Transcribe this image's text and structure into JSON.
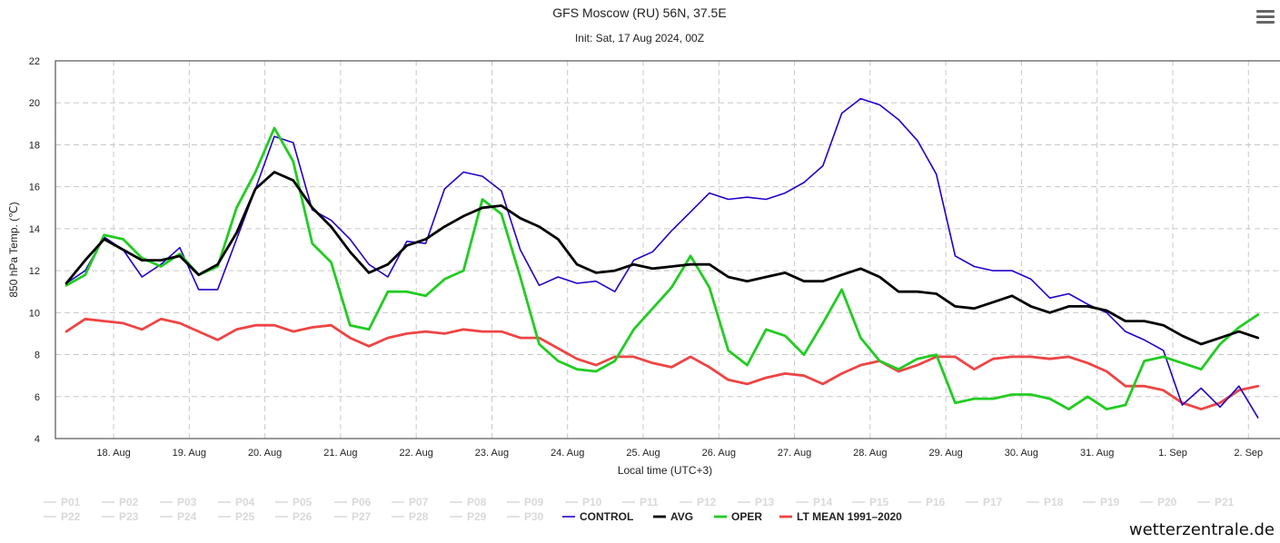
{
  "title": "GFS Moscow (RU) 56N, 37.5E",
  "subtitle": "Init: Sat, 17 Aug 2024, 00Z",
  "credit": "wetterzentrale.de",
  "chart_data": {
    "type": "line",
    "ylabel": "850 hPa Temp. (℃)",
    "xlabel": "Local time (UTC+3)",
    "ylim": [
      4,
      22
    ],
    "yticks": [
      4,
      6,
      8,
      10,
      12,
      14,
      16,
      18,
      20,
      22
    ],
    "x_start": "2024-08-17 09:00",
    "x_step_hours": 6,
    "xtick_labels": [
      "18. Aug",
      "19. Aug",
      "20. Aug",
      "21. Aug",
      "22. Aug",
      "23. Aug",
      "24. Aug",
      "25. Aug",
      "26. Aug",
      "27. Aug",
      "28. Aug",
      "29. Aug",
      "30. Aug",
      "31. Aug",
      "1. Sep",
      "2. Sep"
    ],
    "grid": true,
    "series": [
      {
        "name": "CONTROL",
        "color": "#2200cc",
        "values": [
          11.4,
          12.0,
          13.6,
          13.0,
          11.7,
          12.3,
          13.1,
          11.1,
          11.1,
          13.5,
          15.9,
          18.4,
          18.1,
          14.9,
          14.4,
          13.5,
          12.3,
          11.7,
          13.4,
          13.3,
          15.9,
          16.7,
          16.5,
          15.8,
          13.0,
          11.3,
          11.7,
          11.4,
          11.5,
          11.0,
          12.5,
          12.9,
          13.9,
          14.8,
          15.7,
          15.4,
          15.5,
          15.4,
          15.7,
          16.2,
          17.0,
          19.5,
          20.2,
          19.9,
          19.2,
          18.2,
          16.6,
          12.7,
          12.2,
          12.0,
          12.0,
          11.6,
          10.7,
          10.9,
          10.4,
          10.0,
          9.1,
          8.7,
          8.2,
          5.6,
          6.4,
          5.5,
          6.5,
          5.0
        ]
      },
      {
        "name": "AVG",
        "color": "#000000",
        "values": [
          11.4,
          12.5,
          13.5,
          13.0,
          12.5,
          12.5,
          12.7,
          11.8,
          12.3,
          13.8,
          15.9,
          16.7,
          16.3,
          15.0,
          14.1,
          12.9,
          11.9,
          12.3,
          13.2,
          13.5,
          14.1,
          14.6,
          15.0,
          15.1,
          14.5,
          14.1,
          13.5,
          12.3,
          11.9,
          12.0,
          12.3,
          12.1,
          12.2,
          12.3,
          12.3,
          11.7,
          11.5,
          11.7,
          11.9,
          11.5,
          11.5,
          11.8,
          12.1,
          11.7,
          11.0,
          11.0,
          10.9,
          10.3,
          10.2,
          10.5,
          10.8,
          10.3,
          10.0,
          10.3,
          10.3,
          10.1,
          9.6,
          9.6,
          9.4,
          8.9,
          8.5,
          8.8,
          9.1,
          8.8
        ]
      },
      {
        "name": "OPER",
        "color": "#22cc22",
        "values": [
          11.3,
          11.8,
          13.7,
          13.5,
          12.6,
          12.2,
          12.8,
          11.8,
          12.2,
          15.0,
          16.7,
          18.8,
          17.2,
          13.3,
          12.4,
          9.4,
          9.2,
          11.0,
          11.0,
          10.8,
          11.6,
          12.0,
          15.4,
          14.7,
          11.7,
          8.5,
          7.7,
          7.3,
          7.2,
          7.7,
          9.2,
          10.2,
          11.2,
          12.7,
          11.2,
          8.2,
          7.5,
          9.2,
          8.9,
          8.0,
          9.5,
          11.1,
          8.8,
          7.7,
          7.3,
          7.8,
          8.0,
          5.7,
          5.9,
          5.9,
          6.1,
          6.1,
          5.9,
          5.4,
          6.0,
          5.4,
          5.6,
          7.7,
          7.9,
          7.6,
          7.3,
          8.5,
          9.3,
          9.9
        ]
      },
      {
        "name": "LT MEAN 1991-2020",
        "color": "#ee4444",
        "values": [
          9.1,
          9.7,
          9.6,
          9.5,
          9.2,
          9.7,
          9.5,
          9.1,
          8.7,
          9.2,
          9.4,
          9.4,
          9.1,
          9.3,
          9.4,
          8.8,
          8.4,
          8.8,
          9.0,
          9.1,
          9.0,
          9.2,
          9.1,
          9.1,
          8.8,
          8.8,
          8.3,
          7.8,
          7.5,
          7.9,
          7.9,
          7.6,
          7.4,
          7.9,
          7.4,
          6.8,
          6.6,
          6.9,
          7.1,
          7.0,
          6.6,
          7.1,
          7.5,
          7.7,
          7.2,
          7.5,
          7.9,
          7.9,
          7.3,
          7.8,
          7.9,
          7.9,
          7.8,
          7.9,
          7.6,
          7.2,
          6.5,
          6.5,
          6.3,
          5.7,
          5.4,
          5.7,
          6.3,
          6.5
        ]
      }
    ],
    "legend_inactive": [
      "P01",
      "P02",
      "P03",
      "P04",
      "P05",
      "P06",
      "P07",
      "P08",
      "P09",
      "P10",
      "P11",
      "P12",
      "P13",
      "P14",
      "P15",
      "P16",
      "P17",
      "P18",
      "P19",
      "P20",
      "P21",
      "P22",
      "P23",
      "P24",
      "P25",
      "P26",
      "P27",
      "P28",
      "P29",
      "P30"
    ],
    "legend_placement": "bottom"
  }
}
